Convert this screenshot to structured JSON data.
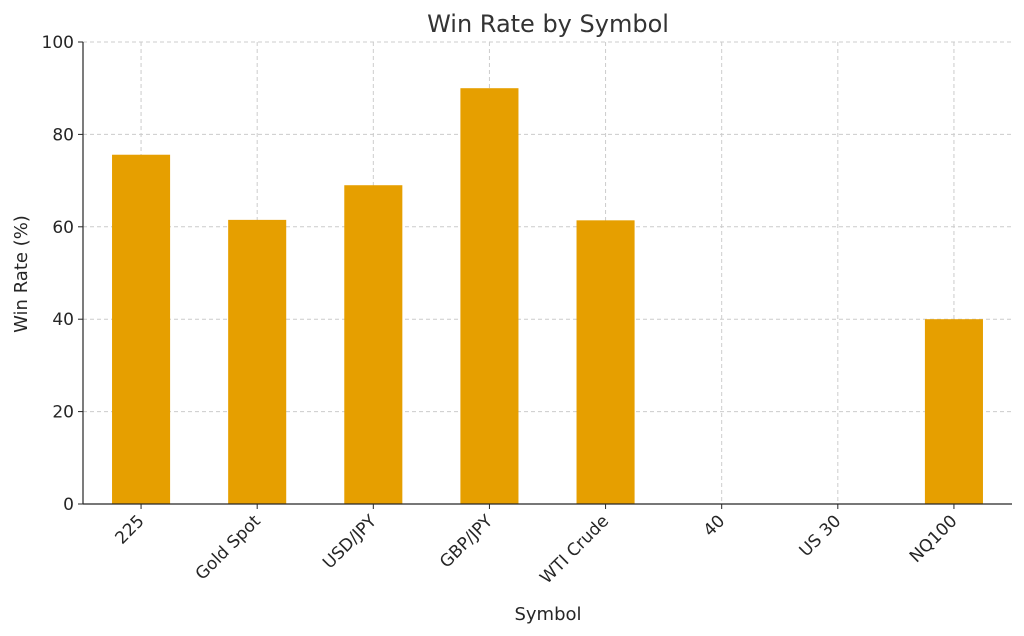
{
  "chart_data": {
    "type": "bar",
    "title": "Win Rate by Symbol",
    "xlabel": "Symbol",
    "ylabel": "Win Rate (%)",
    "categories": [
      "225",
      "Gold Spot",
      "USD/JPY",
      "GBP/JPY",
      "WTI Crude",
      "40",
      "US 30",
      "NQ100"
    ],
    "values": [
      75.6,
      61.5,
      69.0,
      90.0,
      61.4,
      0,
      0,
      40.0
    ],
    "ylim": [
      0,
      100
    ],
    "yticks": [
      "0",
      "20",
      "40",
      "60",
      "80",
      "100"
    ],
    "grid": true,
    "legend": "none",
    "colors": {
      "bar": "#e69f00",
      "grid": "#cccccc",
      "axis": "#262626"
    }
  }
}
